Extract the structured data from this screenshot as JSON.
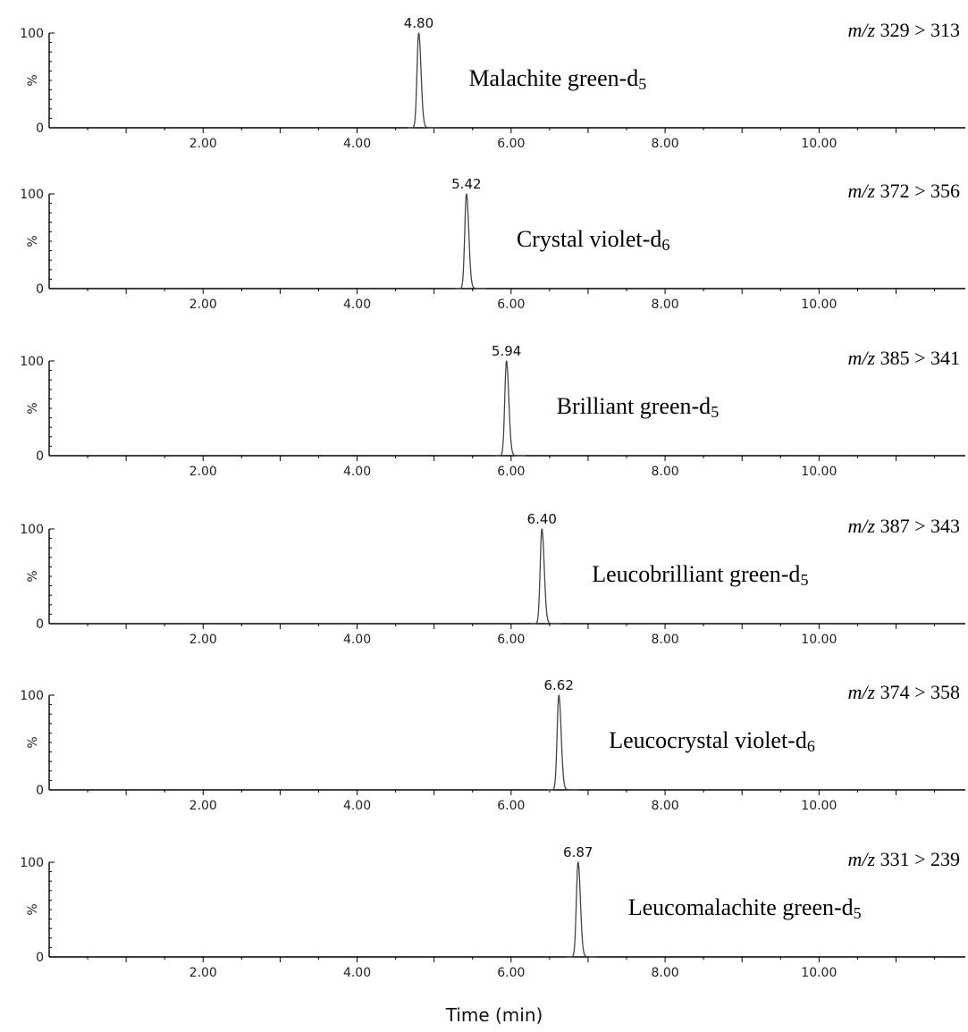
{
  "chart_data": {
    "type": "line",
    "xlabel": "Time (min)",
    "xlim": [
      0,
      11.9
    ],
    "x_ticks": [
      "2.00",
      "4.00",
      "6.00",
      "8.00",
      "10.00"
    ],
    "y_ticks": [
      "0",
      "100"
    ],
    "ylabel": "%",
    "panels": [
      {
        "name_main": "Malachite green-d",
        "name_sub": "5",
        "mz_prefix": "m/z",
        "mz_text": " 329 > 313",
        "peak_rt": 4.8,
        "peak_label": "4.80",
        "peak_height": 100
      },
      {
        "name_main": "Crystal violet-d",
        "name_sub": "6",
        "mz_prefix": "m/z",
        "mz_text": " 372 > 356",
        "peak_rt": 5.42,
        "peak_label": "5.42",
        "peak_height": 100
      },
      {
        "name_main": "Brilliant green-d",
        "name_sub": "5",
        "mz_prefix": "m/z",
        "mz_text": " 385 > 341",
        "peak_rt": 5.94,
        "peak_label": "5.94",
        "peak_height": 100
      },
      {
        "name_main": "Leucobrilliant green-d",
        "name_sub": "5",
        "mz_prefix": "m/z",
        "mz_text": " 387 > 343",
        "peak_rt": 6.4,
        "peak_label": "6.40",
        "peak_height": 100
      },
      {
        "name_main": "Leucocrystal violet-d",
        "name_sub": "6",
        "mz_prefix": "m/z",
        "mz_text": " 374 > 358",
        "peak_rt": 6.62,
        "peak_label": "6.62",
        "peak_height": 100
      },
      {
        "name_main": "Leucomalachite green-d",
        "name_sub": "5",
        "mz_prefix": "m/z",
        "mz_text": " 331 > 239",
        "peak_rt": 6.87,
        "peak_label": "6.87",
        "peak_height": 100
      }
    ]
  }
}
